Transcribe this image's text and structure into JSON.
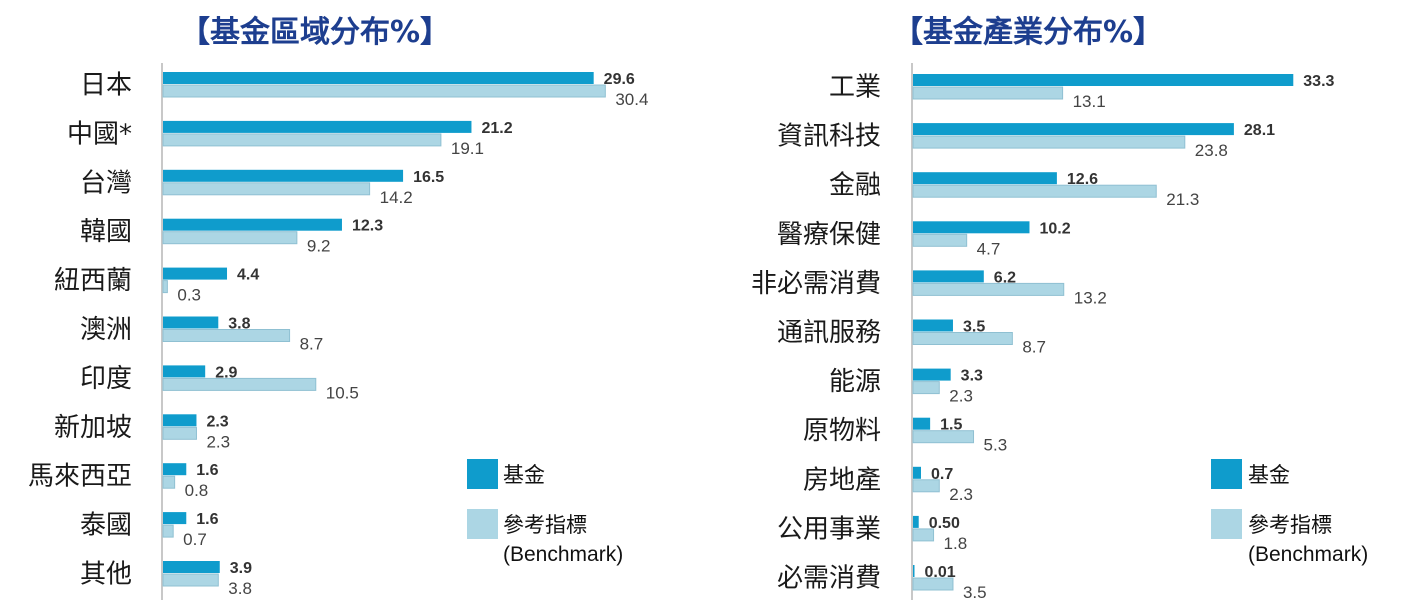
{
  "colors": {
    "fund": "#0f9ccc",
    "benchmark": "#acd6e4",
    "benchmark_stroke": "#8fc0d2",
    "title": "#1d3e8f",
    "axis": "#c8c8c8"
  },
  "chart_data": [
    {
      "type": "bar",
      "orientation": "horizontal",
      "title": "【基金區域分布%】",
      "categories": [
        "日本",
        "中國*",
        "台灣",
        "韓國",
        "紐西蘭",
        "澳洲",
        "印度",
        "新加坡",
        "馬來西亞",
        "泰國",
        "其他"
      ],
      "series": [
        {
          "name": "基金",
          "values": [
            29.6,
            21.2,
            16.5,
            12.3,
            4.4,
            3.8,
            2.9,
            2.3,
            1.6,
            1.6,
            3.9
          ],
          "labels": [
            "29.6",
            "21.2",
            "16.5",
            "12.3",
            "4.4",
            "3.8",
            "2.9",
            "2.3",
            "1.6",
            "1.6",
            "3.9"
          ]
        },
        {
          "name": "參考指標(Benchmark)",
          "values": [
            30.4,
            19.1,
            14.2,
            9.2,
            0.3,
            8.7,
            10.5,
            2.3,
            0.8,
            0.7,
            3.8
          ],
          "labels": [
            "30.4",
            "19.1",
            "14.2",
            "9.2",
            "0.3",
            "8.7",
            "10.5",
            "2.3",
            "0.8",
            "0.7",
            "3.8"
          ]
        }
      ],
      "legend": {
        "fund": "基金",
        "bench_line1": "參考指標",
        "bench_line2": "(Benchmark)"
      },
      "xlim": [
        0,
        36
      ],
      "legend_position": "bottom-right"
    },
    {
      "type": "bar",
      "orientation": "horizontal",
      "title": "【基金產業分布%】",
      "categories": [
        "工業",
        "資訊科技",
        "金融",
        "醫療保健",
        "非必需消費",
        "通訊服務",
        "能源",
        "原物料",
        "房地產",
        "公用事業",
        "必需消費"
      ],
      "series": [
        {
          "name": "基金",
          "values": [
            33.3,
            28.1,
            12.6,
            10.2,
            6.2,
            3.5,
            3.3,
            1.5,
            0.7,
            0.5,
            0.01
          ],
          "labels": [
            "33.3",
            "28.1",
            "12.6",
            "10.2",
            "6.2",
            "3.5",
            "3.3",
            "1.5",
            "0.7",
            "0.50",
            "0.01"
          ]
        },
        {
          "name": "參考指標(Benchmark)",
          "values": [
            13.1,
            23.8,
            21.3,
            4.7,
            13.2,
            8.7,
            2.3,
            5.3,
            2.3,
            1.8,
            3.5
          ],
          "labels": [
            "13.1",
            "23.8",
            "21.3",
            "4.7",
            "13.2",
            "8.7",
            "2.3",
            "5.3",
            "2.3",
            "1.8",
            "3.5"
          ]
        }
      ],
      "legend": {
        "fund": "基金",
        "bench_line1": "參考指標",
        "bench_line2": "(Benchmark)"
      },
      "xlim": [
        0,
        36
      ],
      "legend_position": "bottom-right"
    }
  ]
}
